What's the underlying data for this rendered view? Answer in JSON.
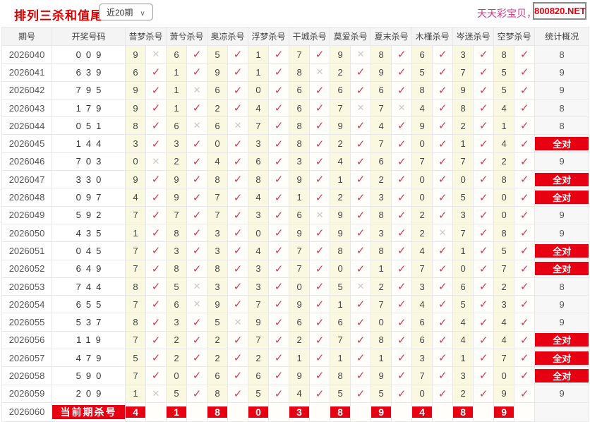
{
  "page": {
    "title": "排列三杀和值尾",
    "range_selector": {
      "value": "近20期",
      "chevron": "∨"
    },
    "watermark_text": "天天彩宝贝，天",
    "site_badge": "800820.NET"
  },
  "table": {
    "headers": [
      "期号",
      "开奖号码",
      "昔梦杀号",
      "萧兮杀号",
      "奥凉杀号",
      "浮梦杀号",
      "干城杀号",
      "莫爱杀号",
      "夏末杀号",
      "木槿杀号",
      "岑迷杀号",
      "空梦杀号",
      "统计概况"
    ],
    "marks": {
      "check": "✓",
      "cross": "✕"
    },
    "all_correct_label": "全对",
    "rows": [
      {
        "period": "2026040",
        "code": "009",
        "kills": [
          [
            "9",
            false
          ],
          [
            "6",
            true
          ],
          [
            "5",
            true
          ],
          [
            "1",
            true
          ],
          [
            "7",
            true
          ],
          [
            "9",
            false
          ],
          [
            "8",
            true
          ],
          [
            "6",
            true
          ],
          [
            "3",
            true
          ],
          [
            "8",
            true
          ]
        ],
        "stat": "8"
      },
      {
        "period": "2026041",
        "code": "639",
        "kills": [
          [
            "6",
            true
          ],
          [
            "1",
            true
          ],
          [
            "9",
            true
          ],
          [
            "1",
            true
          ],
          [
            "8",
            false
          ],
          [
            "2",
            true
          ],
          [
            "9",
            true
          ],
          [
            "5",
            true
          ],
          [
            "7",
            true
          ],
          [
            "5",
            true
          ]
        ],
        "stat": "9"
      },
      {
        "period": "2026042",
        "code": "795",
        "kills": [
          [
            "9",
            true
          ],
          [
            "1",
            false
          ],
          [
            "6",
            true
          ],
          [
            "0",
            true
          ],
          [
            "6",
            true
          ],
          [
            "6",
            true
          ],
          [
            "6",
            true
          ],
          [
            "8",
            true
          ],
          [
            "9",
            true
          ],
          [
            "5",
            true
          ]
        ],
        "stat": "9"
      },
      {
        "period": "2026043",
        "code": "179",
        "kills": [
          [
            "9",
            true
          ],
          [
            "1",
            true
          ],
          [
            "2",
            true
          ],
          [
            "4",
            true
          ],
          [
            "6",
            true
          ],
          [
            "7",
            false
          ],
          [
            "7",
            false
          ],
          [
            "4",
            true
          ],
          [
            "8",
            true
          ],
          [
            "4",
            true
          ]
        ],
        "stat": "8"
      },
      {
        "period": "2026044",
        "code": "051",
        "kills": [
          [
            "8",
            true
          ],
          [
            "6",
            false
          ],
          [
            "6",
            false
          ],
          [
            "7",
            true
          ],
          [
            "8",
            true
          ],
          [
            "9",
            true
          ],
          [
            "4",
            true
          ],
          [
            "9",
            true
          ],
          [
            "2",
            true
          ],
          [
            "1",
            true
          ]
        ],
        "stat": "8"
      },
      {
        "period": "2026045",
        "code": "144",
        "kills": [
          [
            "3",
            true
          ],
          [
            "3",
            true
          ],
          [
            "0",
            true
          ],
          [
            "3",
            true
          ],
          [
            "8",
            true
          ],
          [
            "2",
            true
          ],
          [
            "7",
            true
          ],
          [
            "0",
            true
          ],
          [
            "1",
            true
          ],
          [
            "4",
            true
          ]
        ],
        "stat": "全对"
      },
      {
        "period": "2026046",
        "code": "703",
        "kills": [
          [
            "0",
            false
          ],
          [
            "2",
            true
          ],
          [
            "4",
            true
          ],
          [
            "6",
            true
          ],
          [
            "3",
            true
          ],
          [
            "4",
            true
          ],
          [
            "6",
            true
          ],
          [
            "7",
            true
          ],
          [
            "7",
            true
          ],
          [
            "2",
            true
          ]
        ],
        "stat": "9"
      },
      {
        "period": "2026047",
        "code": "330",
        "kills": [
          [
            "9",
            true
          ],
          [
            "9",
            true
          ],
          [
            "8",
            true
          ],
          [
            "8",
            true
          ],
          [
            "9",
            true
          ],
          [
            "1",
            true
          ],
          [
            "2",
            true
          ],
          [
            "0",
            true
          ],
          [
            "0",
            true
          ],
          [
            "8",
            true
          ]
        ],
        "stat": "全对"
      },
      {
        "period": "2026048",
        "code": "097",
        "kills": [
          [
            "4",
            true
          ],
          [
            "9",
            true
          ],
          [
            "7",
            true
          ],
          [
            "4",
            true
          ],
          [
            "1",
            true
          ],
          [
            "2",
            true
          ],
          [
            "3",
            true
          ],
          [
            "0",
            true
          ],
          [
            "5",
            true
          ],
          [
            "0",
            true
          ]
        ],
        "stat": "全对"
      },
      {
        "period": "2026049",
        "code": "592",
        "kills": [
          [
            "7",
            true
          ],
          [
            "7",
            true
          ],
          [
            "7",
            true
          ],
          [
            "3",
            true
          ],
          [
            "6",
            false
          ],
          [
            "9",
            true
          ],
          [
            "8",
            true
          ],
          [
            "2",
            true
          ],
          [
            "3",
            true
          ],
          [
            "0",
            true
          ]
        ],
        "stat": "9"
      },
      {
        "period": "2026050",
        "code": "435",
        "kills": [
          [
            "1",
            true
          ],
          [
            "8",
            true
          ],
          [
            "3",
            true
          ],
          [
            "0",
            true
          ],
          [
            "9",
            true
          ],
          [
            "9",
            true
          ],
          [
            "3",
            true
          ],
          [
            "2",
            false
          ],
          [
            "7",
            true
          ],
          [
            "8",
            true
          ]
        ],
        "stat": "9"
      },
      {
        "period": "2026051",
        "code": "045",
        "kills": [
          [
            "7",
            true
          ],
          [
            "3",
            true
          ],
          [
            "3",
            true
          ],
          [
            "4",
            true
          ],
          [
            "7",
            true
          ],
          [
            "8",
            true
          ],
          [
            "8",
            true
          ],
          [
            "4",
            true
          ],
          [
            "1",
            true
          ],
          [
            "5",
            true
          ]
        ],
        "stat": "全对"
      },
      {
        "period": "2026052",
        "code": "649",
        "kills": [
          [
            "7",
            true
          ],
          [
            "8",
            true
          ],
          [
            "8",
            true
          ],
          [
            "3",
            true
          ],
          [
            "7",
            true
          ],
          [
            "0",
            true
          ],
          [
            "1",
            true
          ],
          [
            "7",
            true
          ],
          [
            "0",
            true
          ],
          [
            "7",
            true
          ]
        ],
        "stat": "全对"
      },
      {
        "period": "2026053",
        "code": "744",
        "kills": [
          [
            "8",
            true
          ],
          [
            "5",
            false
          ],
          [
            "3",
            true
          ],
          [
            "3",
            true
          ],
          [
            "0",
            true
          ],
          [
            "5",
            false
          ],
          [
            "2",
            true
          ],
          [
            "3",
            true
          ],
          [
            "6",
            true
          ],
          [
            "2",
            true
          ]
        ],
        "stat": "8"
      },
      {
        "period": "2026054",
        "code": "655",
        "kills": [
          [
            "7",
            true
          ],
          [
            "6",
            false
          ],
          [
            "9",
            true
          ],
          [
            "7",
            true
          ],
          [
            "9",
            true
          ],
          [
            "1",
            true
          ],
          [
            "7",
            true
          ],
          [
            "4",
            true
          ],
          [
            "5",
            true
          ],
          [
            "3",
            true
          ]
        ],
        "stat": "9"
      },
      {
        "period": "2026055",
        "code": "537",
        "kills": [
          [
            "8",
            true
          ],
          [
            "3",
            true
          ],
          [
            "5",
            false
          ],
          [
            "9",
            true
          ],
          [
            "6",
            true
          ],
          [
            "6",
            true
          ],
          [
            "0",
            true
          ],
          [
            "6",
            true
          ],
          [
            "4",
            true
          ],
          [
            "4",
            true
          ]
        ],
        "stat": "9"
      },
      {
        "period": "2026056",
        "code": "119",
        "kills": [
          [
            "7",
            true
          ],
          [
            "2",
            true
          ],
          [
            "2",
            true
          ],
          [
            "7",
            true
          ],
          [
            "2",
            true
          ],
          [
            "7",
            true
          ],
          [
            "8",
            true
          ],
          [
            "6",
            true
          ],
          [
            "4",
            true
          ],
          [
            "4",
            true
          ]
        ],
        "stat": "全对"
      },
      {
        "period": "2026057",
        "code": "479",
        "kills": [
          [
            "5",
            true
          ],
          [
            "2",
            true
          ],
          [
            "2",
            true
          ],
          [
            "2",
            true
          ],
          [
            "1",
            true
          ],
          [
            "1",
            true
          ],
          [
            "1",
            true
          ],
          [
            "3",
            true
          ],
          [
            "1",
            true
          ],
          [
            "7",
            true
          ]
        ],
        "stat": "全对"
      },
      {
        "period": "2026058",
        "code": "590",
        "kills": [
          [
            "7",
            true
          ],
          [
            "0",
            true
          ],
          [
            "6",
            true
          ],
          [
            "6",
            true
          ],
          [
            "9",
            true
          ],
          [
            "8",
            true
          ],
          [
            "9",
            true
          ],
          [
            "7",
            true
          ],
          [
            "3",
            true
          ],
          [
            "0",
            true
          ]
        ],
        "stat": "全对"
      },
      {
        "period": "2026059",
        "code": "209",
        "kills": [
          [
            "1",
            false
          ],
          [
            "5",
            true
          ],
          [
            "8",
            true
          ],
          [
            "5",
            true
          ],
          [
            "4",
            true
          ],
          [
            "5",
            true
          ],
          [
            "5",
            true
          ],
          [
            "0",
            true
          ],
          [
            "2",
            true
          ],
          [
            "9",
            true
          ]
        ],
        "stat": "9"
      }
    ],
    "current_row": {
      "period": "2026060",
      "label": "当前期杀号",
      "kills": [
        "4",
        "1",
        "8",
        "0",
        "3",
        "8",
        "9",
        "4",
        "8",
        "9"
      ],
      "stat": ""
    }
  }
}
